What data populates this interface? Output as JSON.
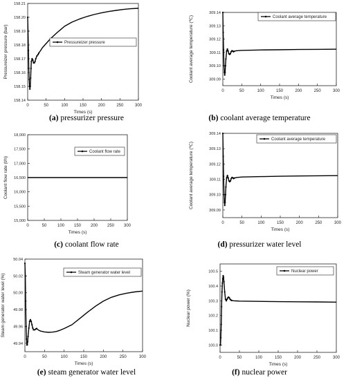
{
  "chart_data": [
    {
      "type": "line",
      "panel_label": "(a)",
      "caption": "pressurizer pressure",
      "xlabel": "Times (s)",
      "ylabel": "Pressureizer pressure (bar)",
      "xlim": [
        0,
        300
      ],
      "ylim": [
        158.14,
        158.21
      ],
      "xticks": [
        "0",
        "50",
        "100",
        "150",
        "200",
        "250",
        "300"
      ],
      "yticks": [
        "158.14",
        "158.15",
        "158.16",
        "158.17",
        "158.18",
        "158.19",
        "158.20",
        "158.21"
      ],
      "legend_position": "top-right",
      "series": [
        {
          "name": "Pressureizer pressure",
          "x": [
            0,
            1,
            2,
            3,
            4,
            5,
            6,
            7,
            8,
            9,
            10,
            12,
            14,
            16,
            18,
            20,
            22,
            25,
            28,
            30,
            35,
            40,
            50,
            60,
            70,
            80,
            90,
            100,
            120,
            140,
            160,
            180,
            200,
            220,
            240,
            260,
            280,
            300
          ],
          "y": [
            158.2,
            158.19,
            158.176,
            158.163,
            158.155,
            158.15,
            158.148,
            158.15,
            158.156,
            158.163,
            158.168,
            158.17,
            158.169,
            158.167,
            158.167,
            158.168,
            158.17,
            158.172,
            158.173,
            158.174,
            158.176,
            158.178,
            158.181,
            158.184,
            158.1865,
            158.189,
            158.1912,
            158.1935,
            158.1965,
            158.1987,
            158.2005,
            158.202,
            158.2032,
            158.2042,
            158.205,
            158.2057,
            158.2062,
            158.2065
          ]
        }
      ]
    },
    {
      "type": "line",
      "panel_label": "(b)",
      "caption": "coolant average temperature",
      "xlabel": "Times (s)",
      "ylabel": "Coolant average temperature (℃)",
      "xlim": [
        0,
        300
      ],
      "ylim": [
        309.085,
        309.14
      ],
      "xticks": [
        "0",
        "50",
        "100",
        "150",
        "200",
        "250",
        "300"
      ],
      "yticks": [
        "309.09",
        "309.10",
        "309.11",
        "309.12",
        "309.13",
        "309.14"
      ],
      "legend_position": "top-right",
      "series": [
        {
          "name": "Coolant average temperature",
          "x": [
            0,
            1,
            2,
            3,
            4,
            5,
            6,
            7,
            8,
            10,
            12,
            14,
            16,
            18,
            20,
            22,
            24,
            26,
            28,
            30,
            35,
            40,
            50,
            100,
            150,
            200,
            250,
            300
          ],
          "y": [
            309.14,
            309.125,
            309.112,
            309.1,
            309.095,
            309.093,
            309.095,
            309.1,
            309.105,
            309.111,
            309.1125,
            309.111,
            309.109,
            309.1085,
            309.109,
            309.1105,
            309.1112,
            309.111,
            309.1105,
            309.1108,
            309.1112,
            309.1113,
            309.1115,
            309.1118,
            309.112,
            309.1122,
            309.1123,
            309.1124
          ]
        }
      ]
    },
    {
      "type": "line",
      "panel_label": "(c)",
      "caption": "coolant flow rate",
      "xlabel": "Times (s)",
      "ylabel": "Coolant flow rate (t/h)",
      "xlim": [
        0,
        300
      ],
      "ylim": [
        15000,
        18000
      ],
      "xticks": [
        "0",
        "50",
        "100",
        "150",
        "200",
        "250",
        "300"
      ],
      "yticks": [
        "15,000",
        "15,500",
        "16,000",
        "16,500",
        "17,000",
        "17,500",
        "18,000"
      ],
      "legend_position": "top-right",
      "series": [
        {
          "name": "Coolant flow rate",
          "x": [
            0,
            300
          ],
          "y": [
            16500,
            16500
          ]
        }
      ]
    },
    {
      "type": "line",
      "panel_label": "(d)",
      "caption": "pressurizer water level",
      "xlabel": "Times (s)",
      "ylabel": "Coolant average temperature (℃)",
      "xlim": [
        0,
        300
      ],
      "ylim": [
        309.085,
        309.14
      ],
      "xticks": [
        "0",
        "50",
        "100",
        "150",
        "200",
        "250",
        "300"
      ],
      "yticks": [
        "309.09",
        "309.10",
        "309.11",
        "309.12",
        "309.13",
        "309.14"
      ],
      "legend_position": "top-right",
      "series": [
        {
          "name": "Coolant average temperature",
          "x": [
            0,
            1,
            2,
            3,
            4,
            5,
            6,
            7,
            8,
            10,
            12,
            14,
            16,
            18,
            20,
            22,
            24,
            26,
            28,
            30,
            35,
            40,
            50,
            100,
            150,
            200,
            250,
            300
          ],
          "y": [
            309.14,
            309.125,
            309.112,
            309.1,
            309.095,
            309.093,
            309.095,
            309.1,
            309.105,
            309.111,
            309.1125,
            309.111,
            309.109,
            309.1085,
            309.109,
            309.1105,
            309.1112,
            309.111,
            309.1105,
            309.1108,
            309.1112,
            309.1113,
            309.1115,
            309.1118,
            309.112,
            309.1122,
            309.1123,
            309.1124
          ]
        }
      ]
    },
    {
      "type": "line",
      "panel_label": "(e)",
      "caption": "steam generator water level",
      "xlabel": "Times (s)",
      "ylabel": "Steam generator water level (%)",
      "xlim": [
        0,
        300
      ],
      "ylim": [
        49.93,
        50.04
      ],
      "xticks": [
        "0",
        "50",
        "100",
        "150",
        "200",
        "250",
        "300"
      ],
      "yticks": [
        "49.94",
        "49.96",
        "49.98",
        "50.00",
        "50.02",
        "50.04"
      ],
      "legend_position": "top-right",
      "series": [
        {
          "name": "Steam generator water level",
          "x": [
            0,
            1,
            2,
            3,
            4,
            5,
            6,
            7,
            8,
            10,
            12,
            14,
            16,
            18,
            20,
            22,
            25,
            28,
            30,
            35,
            40,
            50,
            60,
            70,
            80,
            90,
            100,
            120,
            140,
            160,
            180,
            200,
            220,
            240,
            260,
            280,
            300
          ],
          "y": [
            50.035,
            50.02,
            49.99,
            49.96,
            49.945,
            49.938,
            49.938,
            49.942,
            49.948,
            49.958,
            49.966,
            49.968,
            49.966,
            49.962,
            49.958,
            49.956,
            49.956,
            49.957,
            49.9575,
            49.9555,
            49.9545,
            49.9535,
            49.953,
            49.9532,
            49.954,
            49.9555,
            49.9575,
            49.962,
            49.9695,
            49.977,
            49.984,
            49.99,
            49.9945,
            49.9975,
            49.9995,
            50.001,
            50.002
          ]
        }
      ]
    },
    {
      "type": "line",
      "panel_label": "(f)",
      "caption": "nuclear power",
      "xlabel": "Times (s)",
      "ylabel": "Nuclear power (%)",
      "xlim": [
        0,
        300
      ],
      "ylim": [
        99.95,
        100.55
      ],
      "xticks": [
        "0",
        "50",
        "100",
        "150",
        "200",
        "250",
        "300"
      ],
      "yticks": [
        "100.0",
        "100.1",
        "100.2",
        "100.3",
        "100.4",
        "100.5"
      ],
      "legend_position": "top-right",
      "series": [
        {
          "name": "Nuclear power",
          "x": [
            0,
            1,
            2,
            3,
            4,
            5,
            6,
            7,
            8,
            9,
            10,
            12,
            14,
            16,
            18,
            20,
            22,
            24,
            26,
            28,
            30,
            35,
            40,
            50,
            100,
            150,
            200,
            250,
            300
          ],
          "y": [
            100.0,
            100.0,
            100.05,
            100.14,
            100.26,
            100.36,
            100.42,
            100.45,
            100.47,
            100.46,
            100.43,
            100.36,
            100.31,
            100.3,
            100.31,
            100.32,
            100.325,
            100.32,
            100.31,
            100.305,
            100.302,
            100.3,
            100.299,
            100.298,
            100.296,
            100.294,
            100.293,
            100.292,
            100.291
          ]
        }
      ]
    }
  ]
}
